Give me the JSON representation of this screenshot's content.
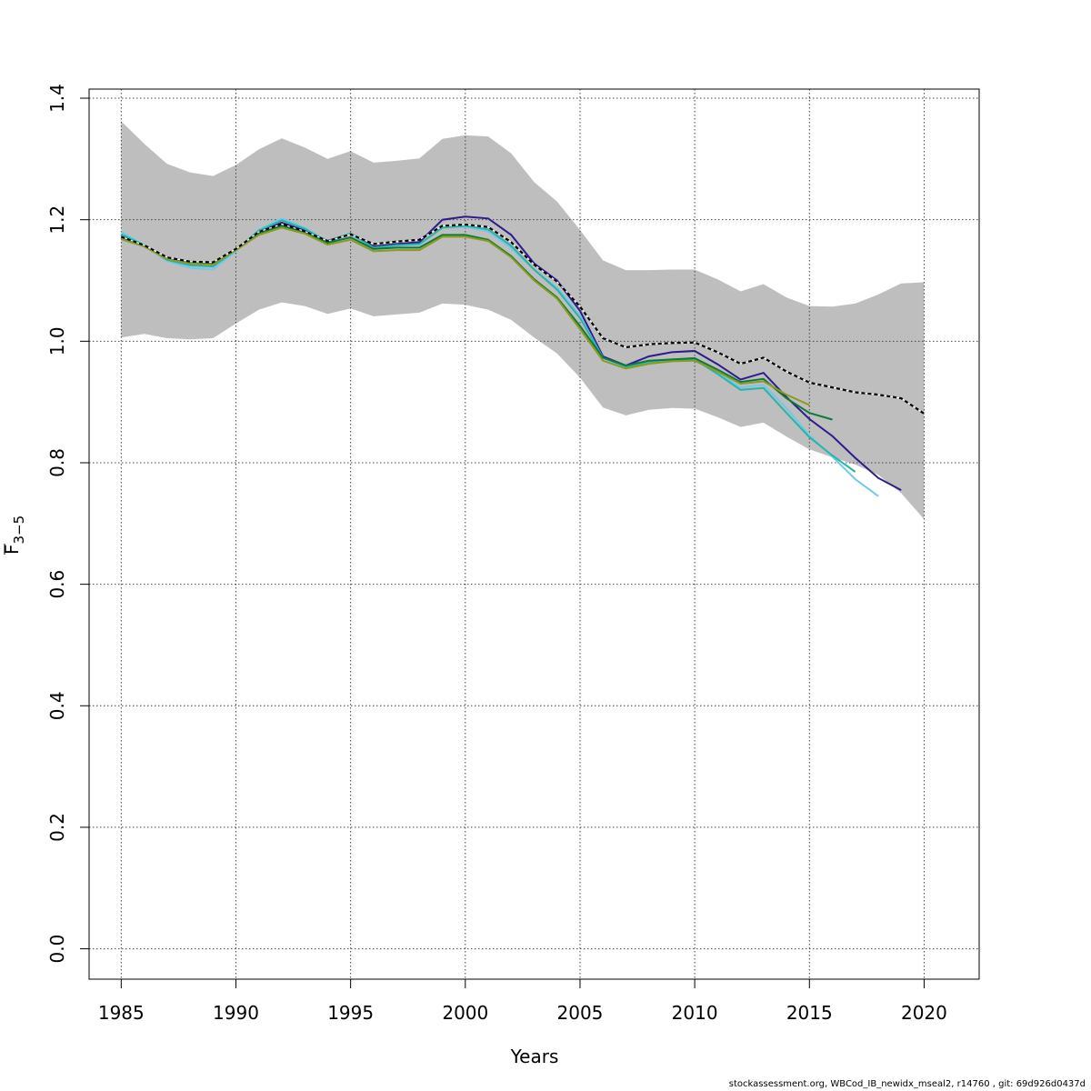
{
  "chart_data": {
    "type": "line",
    "xlabel": "Years",
    "ylabel": "F",
    "ylabel_subscript": "3−5",
    "xlim": [
      1983.6,
      2022.4
    ],
    "ylim": [
      -0.05,
      1.415
    ],
    "x_ticks": [
      1985,
      1990,
      1995,
      2000,
      2005,
      2010,
      2015,
      2020
    ],
    "y_ticks": [
      0.0,
      0.2,
      0.4,
      0.6,
      0.8,
      1.0,
      1.2,
      1.4
    ],
    "y_tick_labels": [
      "0.0",
      "0.2",
      "0.4",
      "0.6",
      "0.8",
      "1.0",
      "1.2",
      "1.4"
    ],
    "grid": true,
    "confidence_band": {
      "color": "#bebebe",
      "x": [
        1985,
        1986,
        1987,
        1988,
        1989,
        1990,
        1991,
        1992,
        1993,
        1994,
        1995,
        1996,
        1997,
        1998,
        1999,
        2000,
        2001,
        2002,
        2003,
        2004,
        2005,
        2006,
        2007,
        2008,
        2009,
        2010,
        2011,
        2012,
        2013,
        2014,
        2015,
        2016,
        2017,
        2018,
        2019,
        2020
      ],
      "upper": [
        1.362,
        1.325,
        1.292,
        1.278,
        1.272,
        1.29,
        1.316,
        1.334,
        1.319,
        1.3,
        1.313,
        1.294,
        1.297,
        1.301,
        1.333,
        1.339,
        1.337,
        1.309,
        1.262,
        1.23,
        1.183,
        1.133,
        1.117,
        1.117,
        1.118,
        1.118,
        1.102,
        1.082,
        1.094,
        1.072,
        1.058,
        1.057,
        1.062,
        1.077,
        1.095,
        1.097
      ],
      "lower": [
        1.006,
        1.012,
        1.005,
        1.003,
        1.005,
        1.029,
        1.052,
        1.064,
        1.058,
        1.045,
        1.054,
        1.041,
        1.044,
        1.047,
        1.062,
        1.06,
        1.052,
        1.035,
        1.006,
        0.98,
        0.94,
        0.891,
        0.878,
        0.887,
        0.89,
        0.889,
        0.875,
        0.859,
        0.866,
        0.843,
        0.822,
        0.809,
        0.797,
        0.78,
        0.75,
        0.707
      ]
    },
    "series": [
      {
        "color": "#000000",
        "dashed": true,
        "x": [
          1985,
          1986,
          1987,
          1988,
          1989,
          1990,
          1991,
          1992,
          1993,
          1994,
          1995,
          1996,
          1997,
          1998,
          1999,
          2000,
          2001,
          2002,
          2003,
          2004,
          2005,
          2006,
          2007,
          2008,
          2009,
          2010,
          2011,
          2012,
          2013,
          2014,
          2015,
          2016,
          2017,
          2018,
          2019,
          2020
        ],
        "values": [
          1.172,
          1.158,
          1.138,
          1.131,
          1.13,
          1.152,
          1.18,
          1.193,
          1.181,
          1.165,
          1.176,
          1.16,
          1.164,
          1.167,
          1.19,
          1.192,
          1.188,
          1.163,
          1.126,
          1.098,
          1.057,
          1.005,
          0.99,
          0.995,
          0.997,
          0.998,
          0.982,
          0.963,
          0.973,
          0.95,
          0.932,
          0.924,
          0.916,
          0.912,
          0.906,
          0.881
        ]
      },
      {
        "color": "#2b1b8c",
        "x": [
          1985,
          1986,
          1987,
          1988,
          1989,
          1990,
          1991,
          1992,
          1993,
          1994,
          1995,
          1996,
          1997,
          1998,
          1999,
          2000,
          2001,
          2002,
          2003,
          2004,
          2005,
          2006,
          2007,
          2008,
          2009,
          2010,
          2011,
          2012,
          2013,
          2014,
          2015,
          2016,
          2017,
          2018,
          2019
        ],
        "values": [
          1.172,
          1.157,
          1.136,
          1.128,
          1.127,
          1.151,
          1.18,
          1.195,
          1.182,
          1.165,
          1.177,
          1.156,
          1.16,
          1.163,
          1.2,
          1.205,
          1.202,
          1.175,
          1.128,
          1.1,
          1.05,
          0.975,
          0.96,
          0.975,
          0.982,
          0.984,
          0.962,
          0.937,
          0.948,
          0.908,
          0.872,
          0.844,
          0.808,
          0.775,
          0.755
        ]
      },
      {
        "color": "#6fc9e8",
        "x": [
          1985,
          1986,
          1987,
          1988,
          1989,
          1990,
          1991,
          1992,
          1993,
          1994,
          1995,
          1996,
          1997,
          1998,
          1999,
          2000,
          2001,
          2002,
          2003,
          2004,
          2005,
          2006,
          2007,
          2008,
          2009,
          2010,
          2011,
          2012,
          2013,
          2014,
          2015,
          2016,
          2017,
          2018
        ],
        "values": [
          1.18,
          1.158,
          1.132,
          1.121,
          1.118,
          1.148,
          1.184,
          1.202,
          1.187,
          1.163,
          1.177,
          1.153,
          1.158,
          1.159,
          1.187,
          1.188,
          1.181,
          1.153,
          1.118,
          1.088,
          1.042,
          0.972,
          0.958,
          0.965,
          0.97,
          0.97,
          0.948,
          0.924,
          0.928,
          0.89,
          0.845,
          0.81,
          0.773,
          0.745
        ]
      },
      {
        "color": "#2ab3a8",
        "x": [
          1985,
          1986,
          1987,
          1988,
          1989,
          1990,
          1991,
          1992,
          1993,
          1994,
          1995,
          1996,
          1997,
          1998,
          1999,
          2000,
          2001,
          2002,
          2003,
          2004,
          2005,
          2006,
          2007,
          2008,
          2009,
          2010,
          2011,
          2012,
          2013,
          2014,
          2015,
          2016,
          2017
        ],
        "values": [
          1.176,
          1.158,
          1.134,
          1.125,
          1.123,
          1.15,
          1.182,
          1.199,
          1.185,
          1.164,
          1.177,
          1.154,
          1.158,
          1.16,
          1.187,
          1.19,
          1.184,
          1.157,
          1.118,
          1.085,
          1.038,
          0.973,
          0.958,
          0.966,
          0.97,
          0.97,
          0.946,
          0.92,
          0.923,
          0.882,
          0.842,
          0.812,
          0.785
        ]
      },
      {
        "color": "#0e7a3a",
        "x": [
          1985,
          1986,
          1987,
          1988,
          1989,
          1990,
          1991,
          1992,
          1993,
          1994,
          1995,
          1996,
          1997,
          1998,
          1999,
          2000,
          2001,
          2002,
          2003,
          2004,
          2005,
          2006,
          2007,
          2008,
          2009,
          2010,
          2011,
          2012,
          2013,
          2014,
          2015,
          2016
        ],
        "values": [
          1.172,
          1.157,
          1.136,
          1.129,
          1.127,
          1.15,
          1.178,
          1.19,
          1.18,
          1.162,
          1.171,
          1.152,
          1.154,
          1.154,
          1.175,
          1.175,
          1.167,
          1.14,
          1.102,
          1.072,
          1.025,
          0.973,
          0.96,
          0.968,
          0.97,
          0.972,
          0.953,
          0.933,
          0.938,
          0.906,
          0.882,
          0.871
        ]
      },
      {
        "color": "#8c9a1f",
        "x": [
          1985,
          1986,
          1987,
          1988,
          1989,
          1990,
          1991,
          1992,
          1993,
          1994,
          1995,
          1996,
          1997,
          1998,
          1999,
          2000,
          2001,
          2002,
          2003,
          2004,
          2005,
          2006,
          2007,
          2008,
          2009,
          2010,
          2011,
          2012,
          2013,
          2014,
          2015
        ],
        "values": [
          1.168,
          1.156,
          1.135,
          1.128,
          1.126,
          1.15,
          1.175,
          1.187,
          1.177,
          1.159,
          1.167,
          1.148,
          1.15,
          1.15,
          1.172,
          1.172,
          1.165,
          1.138,
          1.1,
          1.07,
          1.02,
          0.968,
          0.955,
          0.963,
          0.967,
          0.968,
          0.95,
          0.93,
          0.934,
          0.912,
          0.895
        ]
      }
    ]
  },
  "footer_text": "stockassessment.org, WBCod_IB_newidx_mseal2, r14760 , git: 69d926d0437d"
}
